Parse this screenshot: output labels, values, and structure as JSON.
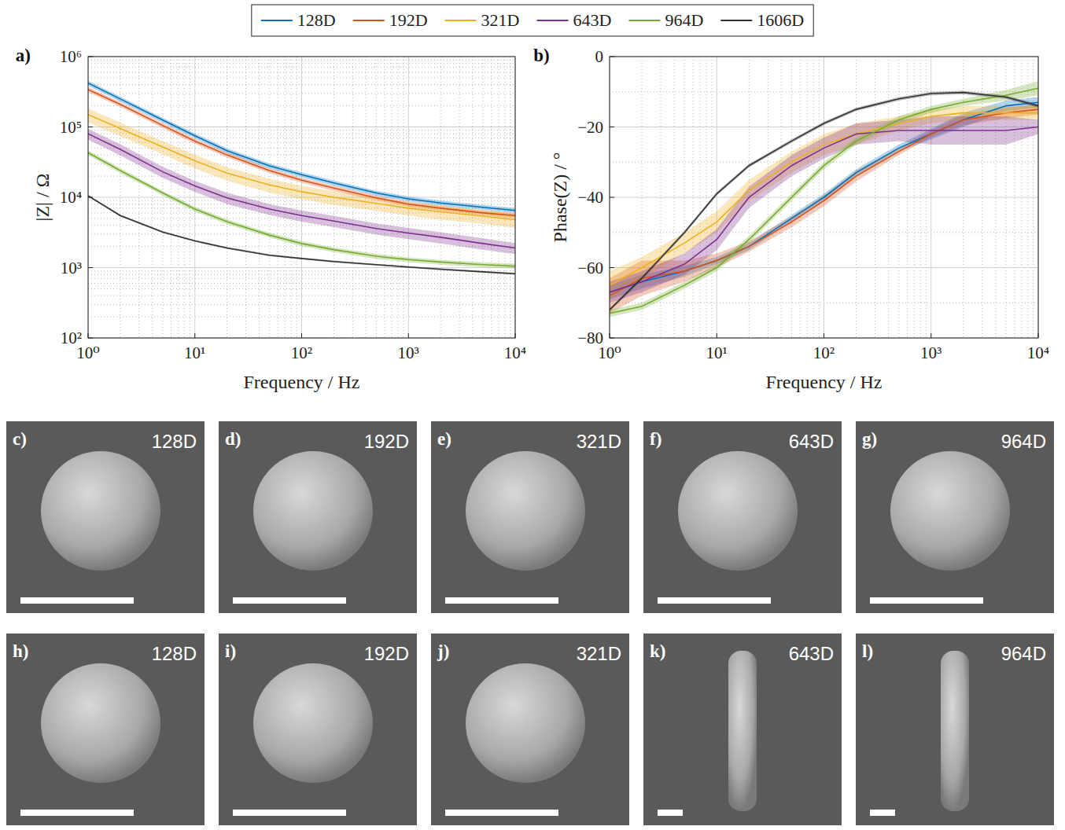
{
  "chart_data": [
    {
      "type": "line",
      "panel": "a)",
      "x_label": "Frequency / Hz",
      "y_label": "|Z| / Ω",
      "log": true,
      "grid": true,
      "legend": "top",
      "x": [
        1,
        2,
        5,
        10,
        20,
        50,
        100,
        200,
        500,
        1000,
        2000,
        5000,
        10000
      ],
      "xlim": [
        1,
        10000
      ],
      "xticks": [
        {
          "value": 1,
          "label": "10⁰"
        },
        {
          "value": 10,
          "label": "10¹"
        },
        {
          "value": 100,
          "label": "10²"
        },
        {
          "value": 1000,
          "label": "10³"
        },
        {
          "value": 10000,
          "label": "10⁴"
        }
      ],
      "ylim": [
        100,
        1000000
      ],
      "yticks": [
        {
          "value": 100,
          "label": "10²"
        },
        {
          "value": 1000,
          "label": "10³"
        },
        {
          "value": 10000,
          "label": "10⁴"
        },
        {
          "value": 100000,
          "label": "10⁵"
        },
        {
          "value": 1000000,
          "label": "10⁶"
        }
      ],
      "series": [
        {
          "name": "128D",
          "color": "#0072bd",
          "values": [
            420000,
            250000,
            125000,
            75000,
            46000,
            28000,
            21000,
            16000,
            11500,
            9500,
            8300,
            7200,
            6500
          ],
          "error": [
            34000,
            20000,
            10000,
            6000,
            3700,
            2200,
            1700,
            1300,
            900,
            760,
            660,
            580,
            520
          ]
        },
        {
          "name": "192D",
          "color": "#d95319",
          "values": [
            340000,
            210000,
            105000,
            63000,
            40000,
            24000,
            17500,
            13500,
            9800,
            8000,
            7000,
            6000,
            5500
          ],
          "error": [
            27000,
            17000,
            8400,
            5000,
            3200,
            1900,
            1400,
            1100,
            780,
            640,
            560,
            480,
            440
          ]
        },
        {
          "name": "321D",
          "color": "#edb120",
          "values": [
            150000,
            95000,
            52000,
            33000,
            22000,
            15000,
            12000,
            10000,
            8200,
            7000,
            6200,
            5400,
            4800
          ],
          "error": [
            33000,
            21000,
            11000,
            7300,
            4800,
            3300,
            2600,
            2200,
            1800,
            1500,
            1400,
            1200,
            1100
          ]
        },
        {
          "name": "643D",
          "color": "#7e2f8e",
          "values": [
            80000,
            48000,
            23000,
            14500,
            9800,
            6800,
            5500,
            4600,
            3600,
            3100,
            2700,
            2200,
            1900
          ],
          "error": [
            14000,
            8600,
            4100,
            2600,
            1800,
            1200,
            1000,
            830,
            650,
            560,
            490,
            400,
            340
          ]
        },
        {
          "name": "964D",
          "color": "#77ac30",
          "values": [
            43000,
            24000,
            11500,
            6800,
            4500,
            2900,
            2200,
            1800,
            1450,
            1300,
            1200,
            1100,
            1050
          ],
          "error": [
            3400,
            1900,
            900,
            540,
            360,
            230,
            180,
            140,
            120,
            100,
            96,
            88,
            84
          ]
        },
        {
          "name": "1606D",
          "color": "#333333",
          "values": [
            10500,
            5500,
            3200,
            2400,
            1900,
            1500,
            1350,
            1220,
            1100,
            1020,
            950,
            870,
            820
          ],
          "error": [
            320,
            170,
            100,
            70,
            60,
            45,
            40,
            37,
            33,
            31,
            29,
            26,
            25
          ]
        }
      ]
    },
    {
      "type": "line",
      "panel": "b)",
      "x_label": "Frequency / Hz",
      "y_label": "Phase(Z) / °",
      "log": "x",
      "grid": true,
      "x": [
        1,
        2,
        5,
        10,
        20,
        50,
        100,
        200,
        500,
        1000,
        2000,
        5000,
        10000
      ],
      "xlim": [
        1,
        10000
      ],
      "xticks": [
        {
          "value": 1,
          "label": "10⁰"
        },
        {
          "value": 10,
          "label": "10¹"
        },
        {
          "value": 100,
          "label": "10²"
        },
        {
          "value": 1000,
          "label": "10³"
        },
        {
          "value": 10000,
          "label": "10⁴"
        }
      ],
      "ylim": [
        -80,
        0
      ],
      "yticks": [
        {
          "value": -80,
          "label": "−80"
        },
        {
          "value": -60,
          "label": "−60"
        },
        {
          "value": -40,
          "label": "−40"
        },
        {
          "value": -20,
          "label": "−20"
        },
        0
      ],
      "series": [
        {
          "name": "128D",
          "color": "#0072bd",
          "values": [
            -67,
            -64,
            -61,
            -58,
            -54,
            -46,
            -40,
            -33,
            -26,
            -22,
            -18,
            -14,
            -13
          ],
          "error": [
            2,
            2,
            1.5,
            1,
            1,
            1,
            1,
            1,
            1,
            1.5,
            2,
            1.5,
            1.5
          ]
        },
        {
          "name": "192D",
          "color": "#d95319",
          "values": [
            -68,
            -63,
            -61,
            -58,
            -54,
            -47,
            -41,
            -34,
            -27,
            -22,
            -18,
            -16,
            -15
          ],
          "error": [
            5,
            5,
            3,
            2,
            1.5,
            1.5,
            1.5,
            1.5,
            1,
            1,
            1.5,
            1.5,
            1.5
          ]
        },
        {
          "name": "321D",
          "color": "#edb120",
          "values": [
            -65,
            -60,
            -53,
            -47,
            -38,
            -30,
            -25,
            -22,
            -19,
            -17,
            -16,
            -16,
            -16
          ],
          "error": [
            4,
            3,
            3,
            3,
            3,
            3,
            3,
            3,
            2,
            2,
            2,
            2,
            2
          ]
        },
        {
          "name": "643D",
          "color": "#7e2f8e",
          "values": [
            -67,
            -64,
            -59,
            -52,
            -40,
            -31,
            -26,
            -22,
            -21,
            -21,
            -21,
            -21,
            -20
          ],
          "error": [
            3,
            3,
            3,
            3,
            3,
            3,
            3,
            3,
            3,
            4,
            4,
            4,
            2
          ]
        },
        {
          "name": "964D",
          "color": "#77ac30",
          "values": [
            -73,
            -71,
            -65,
            -60,
            -52,
            -40,
            -31,
            -24,
            -18,
            -15,
            -13,
            -11,
            -9
          ],
          "error": [
            1,
            1,
            1,
            1,
            1,
            1,
            1,
            1,
            1,
            1,
            1,
            1.5,
            2
          ]
        },
        {
          "name": "1606D",
          "color": "#333333",
          "values": [
            -72,
            -63,
            -50,
            -39,
            -31,
            -24,
            -19,
            -15,
            -12,
            -10.5,
            -10.2,
            -11.5,
            -14
          ],
          "error": [
            0.5,
            0.5,
            0.5,
            0.5,
            0.5,
            0.5,
            0.5,
            0.5,
            0.5,
            0.5,
            0.5,
            0.5,
            0.5
          ]
        }
      ]
    }
  ],
  "images": [
    {
      "label": "c)",
      "text": "128D"
    },
    {
      "label": "d)",
      "text": "192D"
    },
    {
      "label": "e)",
      "text": "321D"
    },
    {
      "label": "f)",
      "text": "643D"
    },
    {
      "label": "g)",
      "text": "964D"
    },
    {
      "label": "h)",
      "text": "128D"
    },
    {
      "label": "i)",
      "text": "192D"
    },
    {
      "label": "j)",
      "text": "321D"
    },
    {
      "label": "k)",
      "text": "643D"
    },
    {
      "label": "l)",
      "text": "964D"
    }
  ]
}
